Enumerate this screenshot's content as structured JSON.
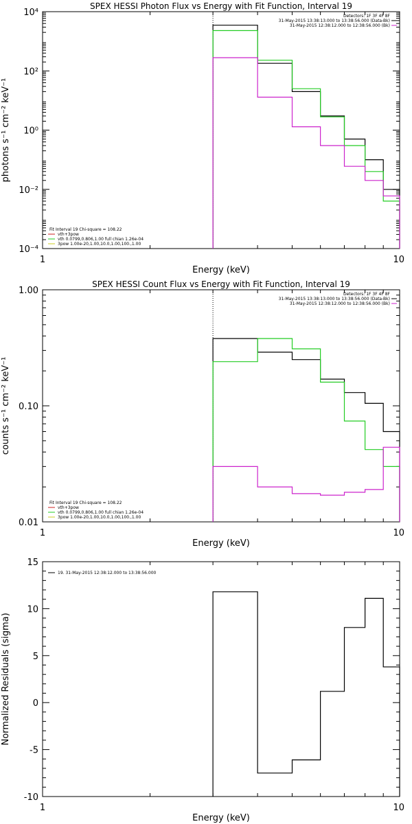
{
  "chart_data": [
    {
      "type": "line",
      "title": "SPEX HESSI Photon Flux vs Energy with Fit Function, Interval 19",
      "xlabel": "Energy (keV)",
      "ylabel": "photons s⁻¹ cm⁻² keV⁻¹",
      "xscale": "log",
      "yscale": "log",
      "xlim": [
        1,
        10
      ],
      "ylim": [
        0.0001,
        10000
      ],
      "xticks": [
        {
          "v": 1,
          "label": "1"
        },
        {
          "v": 10,
          "label": "10"
        }
      ],
      "yticks": [
        {
          "v": 0.0001,
          "label": "10⁻⁴"
        },
        {
          "v": 0.01,
          "label": "10⁻²"
        },
        {
          "v": 1,
          "label": "10⁰"
        },
        {
          "v": 100,
          "label": "10²"
        },
        {
          "v": 10000,
          "label": "10⁴"
        }
      ],
      "vline_x": 3.0,
      "series": [
        {
          "color": "#000000",
          "edges": [
            3.0,
            4.0,
            5.0,
            6.0,
            7.0,
            8.0,
            9.0,
            10.0
          ],
          "values": [
            3500,
            180,
            20,
            3.0,
            0.5,
            0.1,
            0.01
          ]
        },
        {
          "color": "#22cc22",
          "edges": [
            3.0,
            4.0,
            5.0,
            6.0,
            7.0,
            8.0,
            9.0,
            10.0
          ],
          "values": [
            2300,
            230,
            25,
            2.8,
            0.3,
            0.04,
            0.004
          ]
        },
        {
          "color": "#cc22cc",
          "edges": [
            3.0,
            4.0,
            5.0,
            6.0,
            7.0,
            8.0,
            9.0,
            10.0
          ],
          "values": [
            280,
            13,
            1.3,
            0.3,
            0.06,
            0.02,
            0.006
          ]
        }
      ],
      "legend_right": [
        {
          "text": "Detectors: 1F 3F 4F 8F",
          "color": ""
        },
        {
          "text": "31-May-2015 13:38:13.000 to 13:38:56.000 (Data-Bk)",
          "color": "#000000"
        },
        {
          "text": "31-May-2015 12:38:12.000 to 12:38:56.000 (Bk)",
          "color": "#cc22cc"
        }
      ],
      "legend_left": [
        {
          "text": "Fit Interval 19   Chi-square = 108.22",
          "color": ""
        },
        {
          "text": "vth+3pow",
          "color": "#cc2222"
        },
        {
          "text": "vth 0.0799,0.806,1.00  full chian 1.26e-04",
          "color": "#22cc22"
        },
        {
          "text": "3pow 1.00e-20,1.00,10.0,1.00,100.,1.00",
          "color": "#cccc22"
        }
      ]
    },
    {
      "type": "line",
      "title": "SPEX HESSI Count Flux vs Energy with Fit Function, Interval 19",
      "xlabel": "Energy (keV)",
      "ylabel": "counts s⁻¹ cm⁻² keV⁻¹",
      "xscale": "log",
      "yscale": "log",
      "xlim": [
        1,
        10
      ],
      "ylim": [
        0.01,
        1.0
      ],
      "xticks": [
        {
          "v": 1,
          "label": "1"
        },
        {
          "v": 10,
          "label": "10"
        }
      ],
      "yticks": [
        {
          "v": 0.01,
          "label": "0.01"
        },
        {
          "v": 0.1,
          "label": "0.10"
        },
        {
          "v": 1.0,
          "label": "1.00"
        }
      ],
      "vline_x": 3.0,
      "series": [
        {
          "color": "#000000",
          "edges": [
            3.0,
            4.0,
            5.0,
            6.0,
            7.0,
            8.0,
            9.0,
            10.0
          ],
          "values": [
            0.38,
            0.29,
            0.25,
            0.17,
            0.13,
            0.105,
            0.06
          ]
        },
        {
          "color": "#22cc22",
          "edges": [
            3.0,
            4.0,
            5.0,
            6.0,
            7.0,
            8.0,
            9.0,
            10.0
          ],
          "values": [
            0.24,
            0.38,
            0.31,
            0.16,
            0.074,
            0.042,
            0.03
          ]
        },
        {
          "color": "#cc22cc",
          "edges": [
            3.0,
            4.0,
            5.0,
            6.0,
            7.0,
            8.0,
            9.0,
            10.0
          ],
          "values": [
            0.03,
            0.02,
            0.0175,
            0.017,
            0.018,
            0.019,
            0.044
          ]
        }
      ],
      "legend_right": [
        {
          "text": "Detectors: 1F 3F 4F 8F",
          "color": ""
        },
        {
          "text": "31-May-2015 13:38:13.000 to 13:38:56.000 (Data-Bk)",
          "color": "#000000"
        },
        {
          "text": "31-May-2015 12:38:12.000 to 12:38:56.000 (Bk)",
          "color": "#cc22cc"
        }
      ],
      "legend_left": [
        {
          "text": "Fit Interval 19   Chi-square = 108.22",
          "color": ""
        },
        {
          "text": "vth+3pow",
          "color": "#cc2222"
        },
        {
          "text": "vth 0.0799,0.806,1.00  full chian 1.26e-04",
          "color": "#22cc22"
        },
        {
          "text": "3pow 1.00e-20,1.00,10.0,1.00,100.,1.00",
          "color": "#cccc22"
        }
      ]
    },
    {
      "type": "line",
      "title": "",
      "xlabel": "Energy (keV)",
      "ylabel": "Normalized Residuals (sigma)",
      "xscale": "log",
      "yscale": "linear",
      "xlim": [
        1,
        10
      ],
      "ylim": [
        -10,
        15
      ],
      "xticks": [
        {
          "v": 1,
          "label": "1"
        },
        {
          "v": 10,
          "label": "10"
        }
      ],
      "yticks": [
        {
          "v": -10,
          "label": "-10"
        },
        {
          "v": -5,
          "label": "-5"
        },
        {
          "v": 0,
          "label": "0"
        },
        {
          "v": 5,
          "label": "5"
        },
        {
          "v": 10,
          "label": "10"
        },
        {
          "v": 15,
          "label": "15"
        }
      ],
      "vline_x": null,
      "series": [
        {
          "color": "#000000",
          "edges": [
            3.0,
            4.0,
            5.0,
            6.0,
            7.0,
            8.0,
            9.0,
            10.0
          ],
          "values": [
            11.8,
            -7.5,
            -6.1,
            1.2,
            8.0,
            11.1,
            3.8
          ]
        }
      ],
      "legend_right": [],
      "legend_left": [
        {
          "text": "19. 31-May-2015 12:38:12.000 to 13:38:56.000",
          "color": "#000000"
        }
      ]
    }
  ]
}
